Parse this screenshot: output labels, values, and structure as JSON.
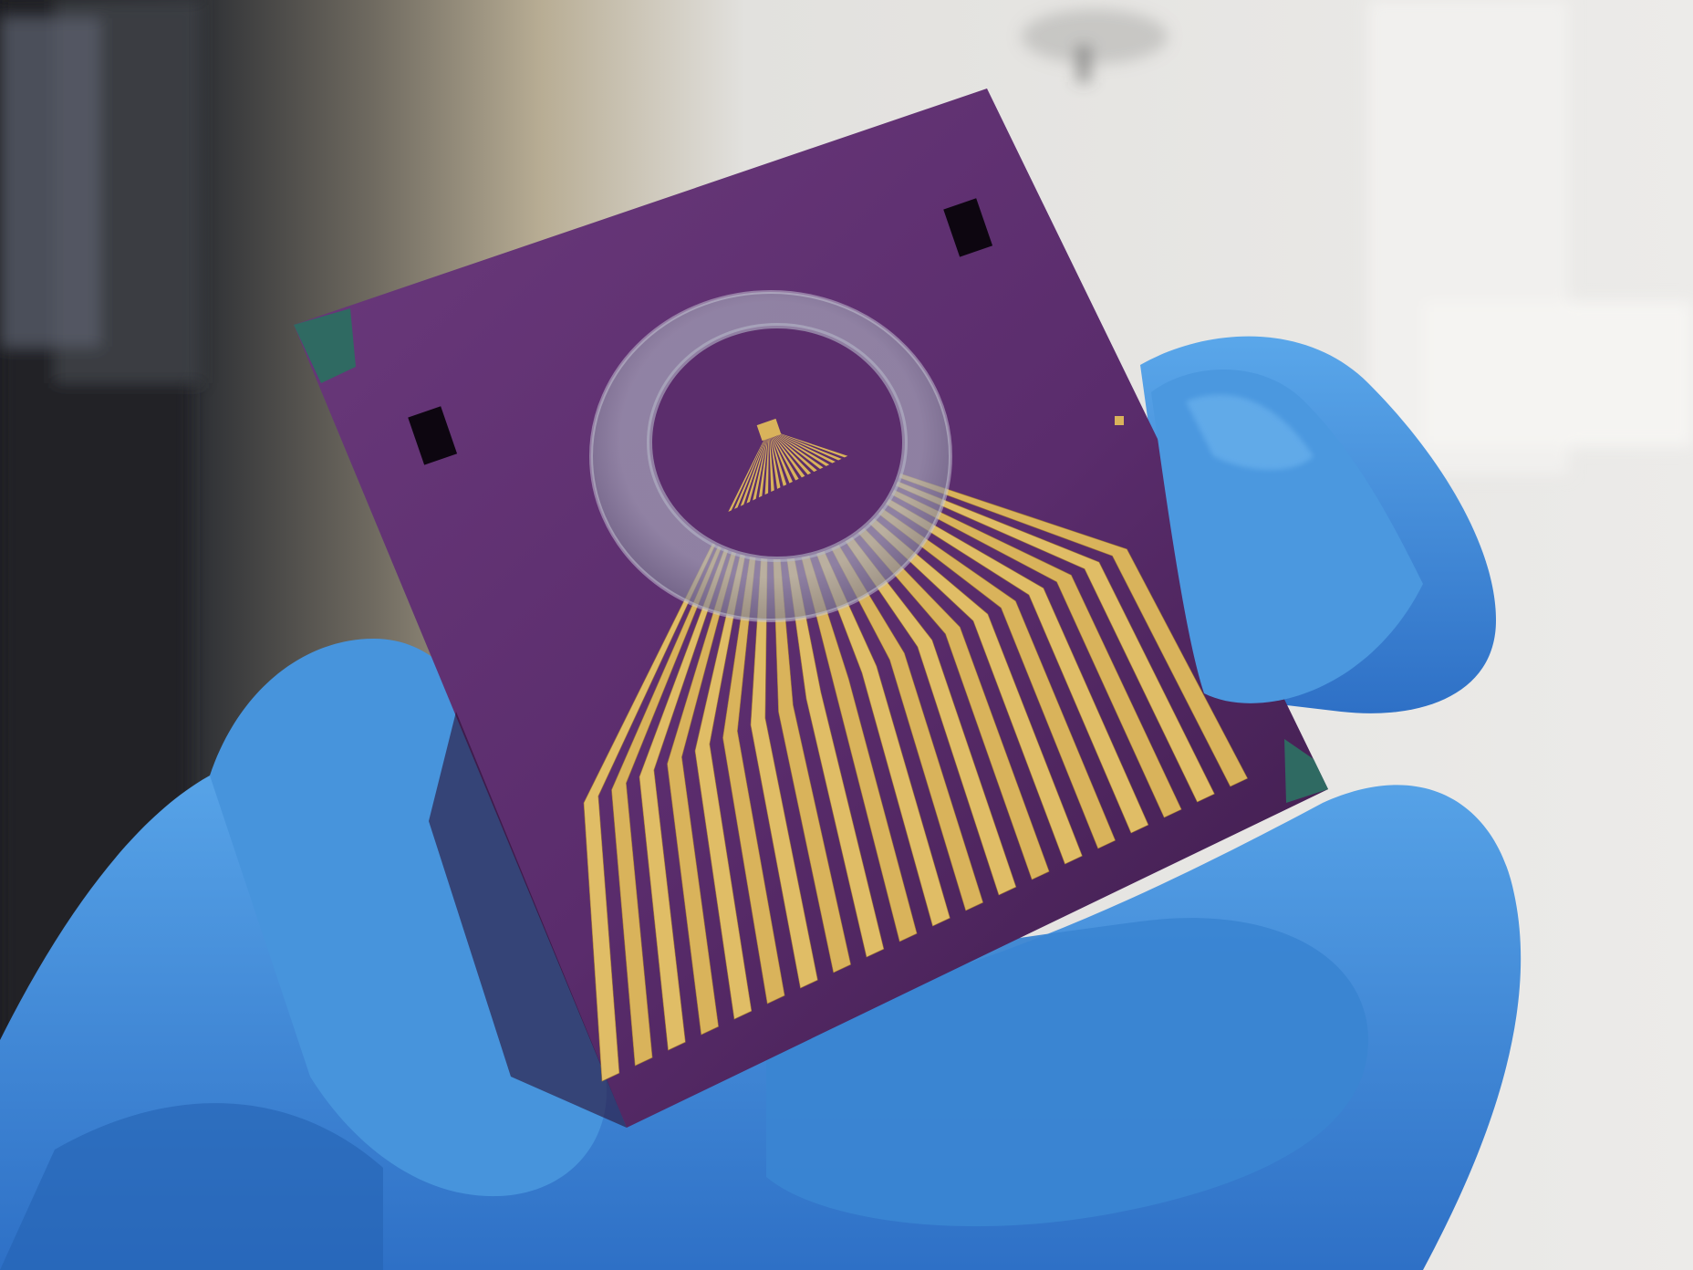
{
  "scene": {
    "subject": "microelectrode-array-chip",
    "colors": {
      "background_light": "#e4e3e0",
      "background_dark": "#2a2b2e",
      "bench_beige": "#b6a98f",
      "chip_purple": "#5e2f6f",
      "chip_purple_dark": "#3f1f4f",
      "gold_trace": "#d9b35b",
      "gold_trace_dark": "#a67d34",
      "glove_blue": "#3d8fd8",
      "glove_blue_dark": "#2a67b8",
      "ring_gray": "#8e8ea3",
      "corner_teal": "#2f6a62"
    },
    "trace_count": 20
  }
}
